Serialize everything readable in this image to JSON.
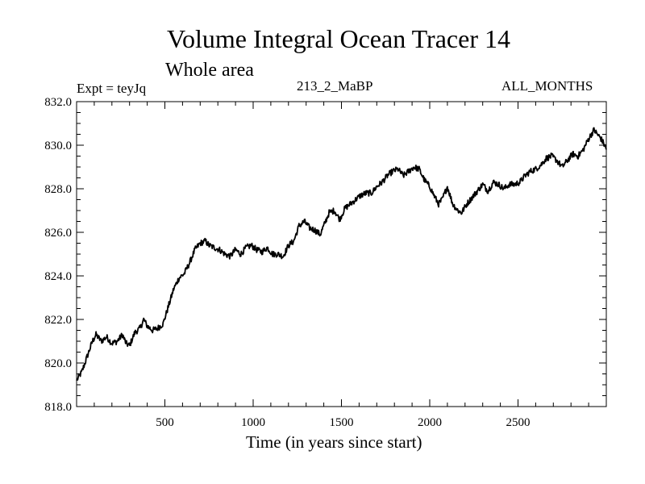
{
  "chart_data": {
    "type": "line",
    "title": "Volume Integral Ocean Tracer 14",
    "subtitle": "Whole area",
    "experiment": "Expt = teyJq",
    "run_label": "213_2_MaBP",
    "period_label": "ALL_MONTHS",
    "xlabel": "Time (in years since start)",
    "ylabel": "",
    "xlim": [
      0,
      3000
    ],
    "ylim": [
      818.0,
      832.0
    ],
    "xticks": [
      500,
      1000,
      1500,
      2000,
      2500
    ],
    "xtick_labels": [
      "500",
      "1000",
      "1500",
      "2000",
      "2500"
    ],
    "yticks": [
      818,
      820,
      822,
      824,
      826,
      828,
      830,
      832
    ],
    "ytick_labels": [
      "818.0",
      "820.0",
      "822.0",
      "824.0",
      "826.0",
      "828.0",
      "830.0",
      "832.0"
    ],
    "grid": false,
    "series": [
      {
        "name": "Tracer 14",
        "x": [
          0,
          30,
          60,
          90,
          110,
          140,
          170,
          200,
          230,
          260,
          280,
          300,
          330,
          360,
          380,
          400,
          430,
          460,
          490,
          520,
          550,
          580,
          610,
          640,
          670,
          700,
          730,
          750,
          780,
          810,
          840,
          870,
          900,
          930,
          960,
          990,
          1020,
          1050,
          1080,
          1110,
          1140,
          1170,
          1200,
          1230,
          1260,
          1290,
          1320,
          1350,
          1380,
          1400,
          1430,
          1460,
          1490,
          1520,
          1550,
          1580,
          1610,
          1640,
          1670,
          1700,
          1730,
          1760,
          1790,
          1820,
          1850,
          1880,
          1910,
          1940,
          1970,
          2000,
          2030,
          2050,
          2070,
          2100,
          2130,
          2160,
          2180,
          2210,
          2240,
          2270,
          2300,
          2330,
          2360,
          2390,
          2420,
          2450,
          2480,
          2510,
          2540,
          2570,
          2600,
          2630,
          2660,
          2690,
          2720,
          2750,
          2780,
          2810,
          2840,
          2870,
          2900,
          2930,
          2950,
          2970,
          2990,
          3000
        ],
        "values": [
          819.2,
          819.6,
          820.3,
          821.0,
          821.3,
          821.0,
          821.2,
          820.9,
          821.0,
          821.3,
          820.9,
          820.8,
          821.4,
          821.6,
          822.0,
          821.7,
          821.5,
          821.6,
          821.8,
          822.6,
          823.4,
          823.9,
          824.1,
          824.6,
          825.2,
          825.5,
          825.6,
          825.4,
          825.3,
          825.2,
          825.0,
          824.9,
          825.2,
          825.0,
          825.3,
          825.4,
          825.2,
          825.1,
          825.3,
          825.0,
          825.0,
          824.9,
          825.4,
          825.6,
          826.3,
          826.5,
          826.2,
          826.1,
          825.9,
          826.3,
          826.9,
          827.0,
          826.6,
          827.1,
          827.3,
          827.5,
          827.7,
          827.8,
          827.8,
          828.1,
          828.3,
          828.6,
          828.8,
          828.9,
          828.6,
          828.8,
          829.0,
          828.9,
          828.4,
          828.1,
          827.6,
          827.3,
          827.5,
          828.1,
          827.3,
          827.0,
          826.9,
          827.3,
          827.6,
          827.9,
          828.2,
          827.9,
          828.3,
          828.2,
          828.0,
          828.2,
          828.2,
          828.3,
          828.6,
          828.8,
          828.9,
          829.1,
          829.4,
          829.5,
          829.3,
          829.0,
          829.3,
          829.6,
          829.5,
          829.8,
          830.3,
          830.7,
          830.5,
          830.3,
          830.0,
          829.8
        ]
      }
    ]
  }
}
